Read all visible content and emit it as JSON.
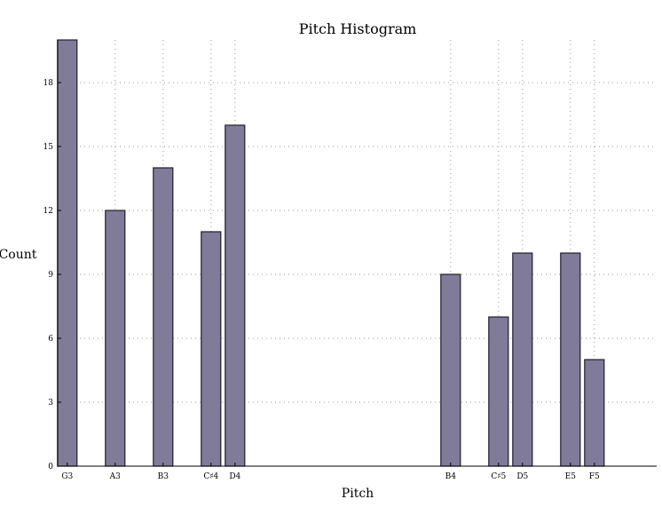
{
  "chart_data": {
    "type": "bar",
    "title": "Pitch Histogram",
    "xlabel": "Pitch",
    "ylabel": "Count",
    "ylim": [
      0,
      20
    ],
    "yticks": [
      0,
      3,
      6,
      9,
      12,
      15,
      18
    ],
    "grid": true,
    "bar_color": "#7f7b99",
    "bar_edge_color": "#1f1f2e",
    "categories": [
      "G3",
      "A3",
      "B3",
      "C♯4",
      "D4",
      "B4",
      "C♯5",
      "D5",
      "E5",
      "F5"
    ],
    "x": [
      55,
      57,
      59,
      61,
      62,
      71,
      73,
      74,
      76,
      77
    ],
    "values": [
      20,
      12,
      14,
      11,
      16,
      9,
      7,
      10,
      10,
      5
    ],
    "xlim": [
      54.6,
      79.6
    ]
  }
}
